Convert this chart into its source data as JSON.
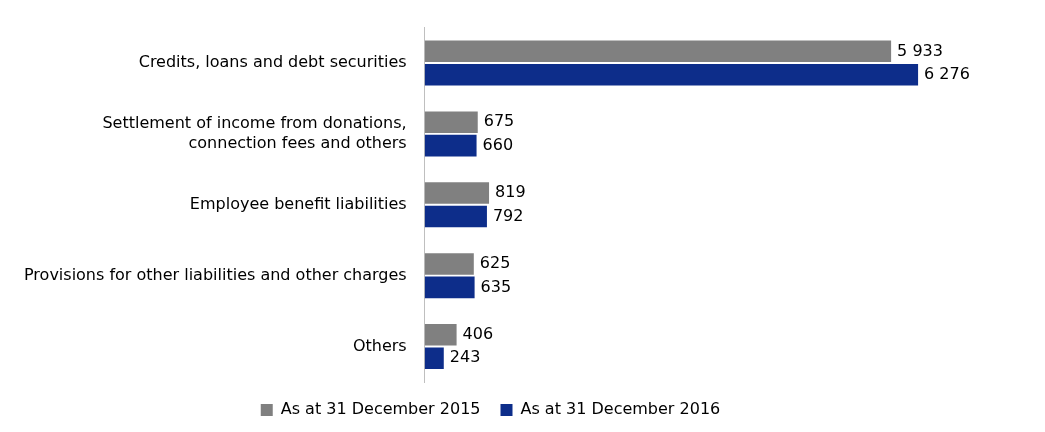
{
  "chart_data": {
    "type": "bar",
    "orientation": "horizontal",
    "categories": [
      "Credits, loans and debt securities",
      "Settlement of income from donations, connection fees and others",
      "Employee benefit liabilities",
      "Provisions for other liabilities and other charges",
      "Others"
    ],
    "series": [
      {
        "name": "As at 31 December 2015",
        "color": "#808080",
        "values": [
          5933,
          675,
          819,
          625,
          406
        ],
        "value_labels": [
          "5 933",
          "675",
          "819",
          "625",
          "406"
        ]
      },
      {
        "name": "As at 31 December 2016",
        "color": "#0d2d8a",
        "values": [
          6276,
          660,
          792,
          635,
          243
        ],
        "value_labels": [
          "6 276",
          "660",
          "792",
          "635",
          "243"
        ]
      }
    ],
    "tick_labels": "y",
    "grid": false,
    "legend": "bottom"
  }
}
